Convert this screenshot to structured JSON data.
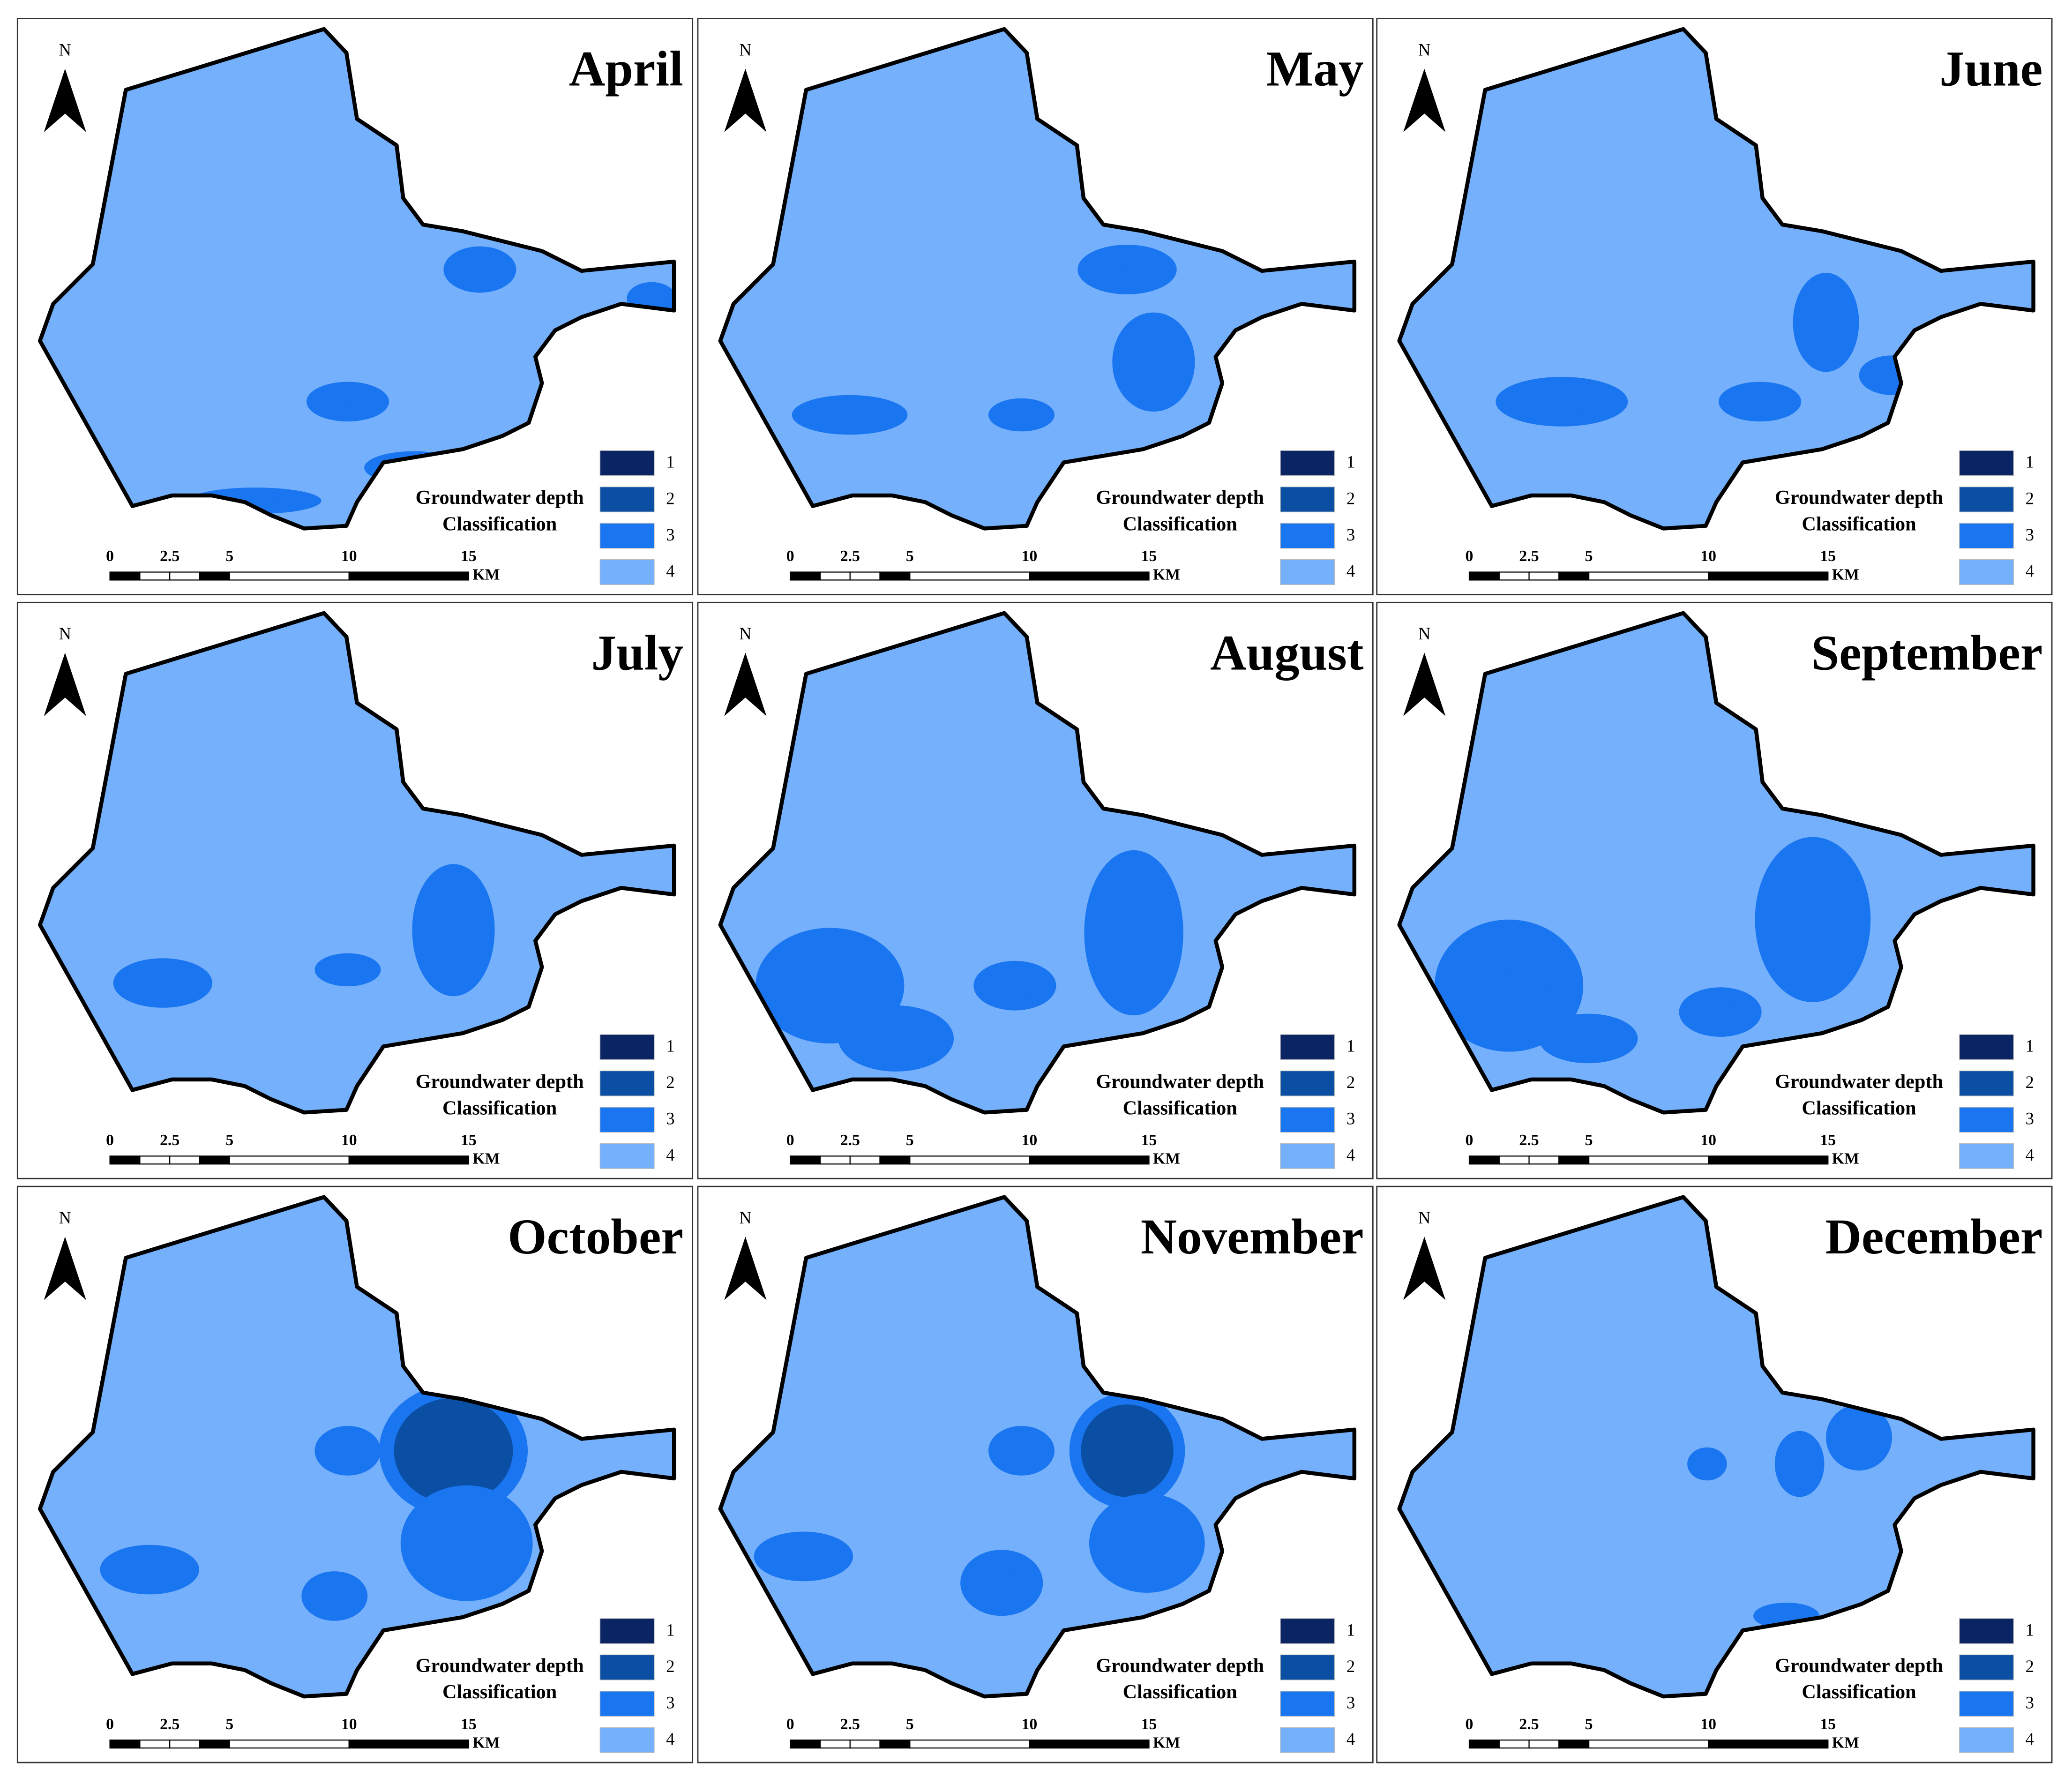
{
  "panels": [
    {
      "title": "April"
    },
    {
      "title": "May"
    },
    {
      "title": "June"
    },
    {
      "title": "July"
    },
    {
      "title": "August"
    },
    {
      "title": "September"
    },
    {
      "title": "October"
    },
    {
      "title": "November"
    },
    {
      "title": "December"
    }
  ],
  "north": "N",
  "legend": {
    "title_lines": [
      "Groundwater depth",
      "Classification"
    ],
    "classes": [
      {
        "label": "1",
        "color": "#0b2463"
      },
      {
        "label": "2",
        "color": "#0a4fa3"
      },
      {
        "label": "3",
        "color": "#1a75f0"
      },
      {
        "label": "4",
        "color": "#74b0fb"
      }
    ]
  },
  "scale_bar": {
    "ticks": [
      0,
      2.5,
      5,
      10,
      15
    ],
    "unit": "KM"
  }
}
